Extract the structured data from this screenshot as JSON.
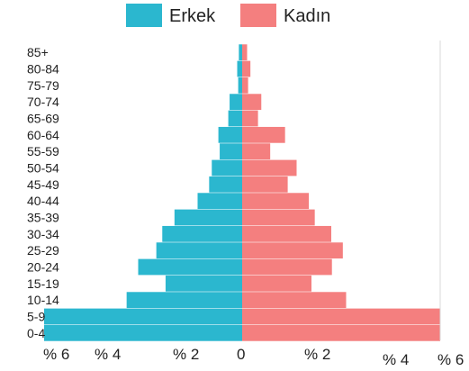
{
  "chart_data": {
    "type": "bar",
    "orientation": "horizontal",
    "categories": [
      "85+",
      "80-84",
      "75-79",
      "70-74",
      "65-69",
      "60-64",
      "55-59",
      "50-54",
      "45-49",
      "40-44",
      "35-39",
      "30-34",
      "25-29",
      "20-24",
      "15-19",
      "10-14",
      "5-9",
      "0-4"
    ],
    "series": [
      {
        "name": "Erkek",
        "color": "#2bb7cf",
        "values": [
          0.1,
          0.15,
          0.12,
          0.38,
          0.42,
          0.72,
          0.68,
          0.92,
          1.0,
          1.35,
          2.05,
          2.42,
          2.6,
          3.15,
          2.32,
          3.5,
          6.0,
          6.0
        ]
      },
      {
        "name": "Kadın",
        "color": "#f47f7f",
        "values": [
          0.15,
          0.25,
          0.18,
          0.58,
          0.48,
          1.3,
          0.85,
          1.65,
          1.38,
          2.02,
          2.2,
          2.7,
          3.05,
          2.72,
          2.1,
          3.15,
          6.0,
          6.0
        ]
      }
    ],
    "xlim": [
      -6,
      6
    ],
    "x_ticks": [
      {
        "value": -6,
        "label": "% 6"
      },
      {
        "value": -4,
        "label": "% 4"
      },
      {
        "value": -2,
        "label": "% 2"
      },
      {
        "value": 0,
        "label": "0"
      },
      {
        "value": 2,
        "label": "% 2"
      },
      {
        "value": 4,
        "label": "% 4"
      },
      {
        "value": 6,
        "label": "% 6"
      }
    ],
    "legend_position": "top-center",
    "grid": false
  }
}
